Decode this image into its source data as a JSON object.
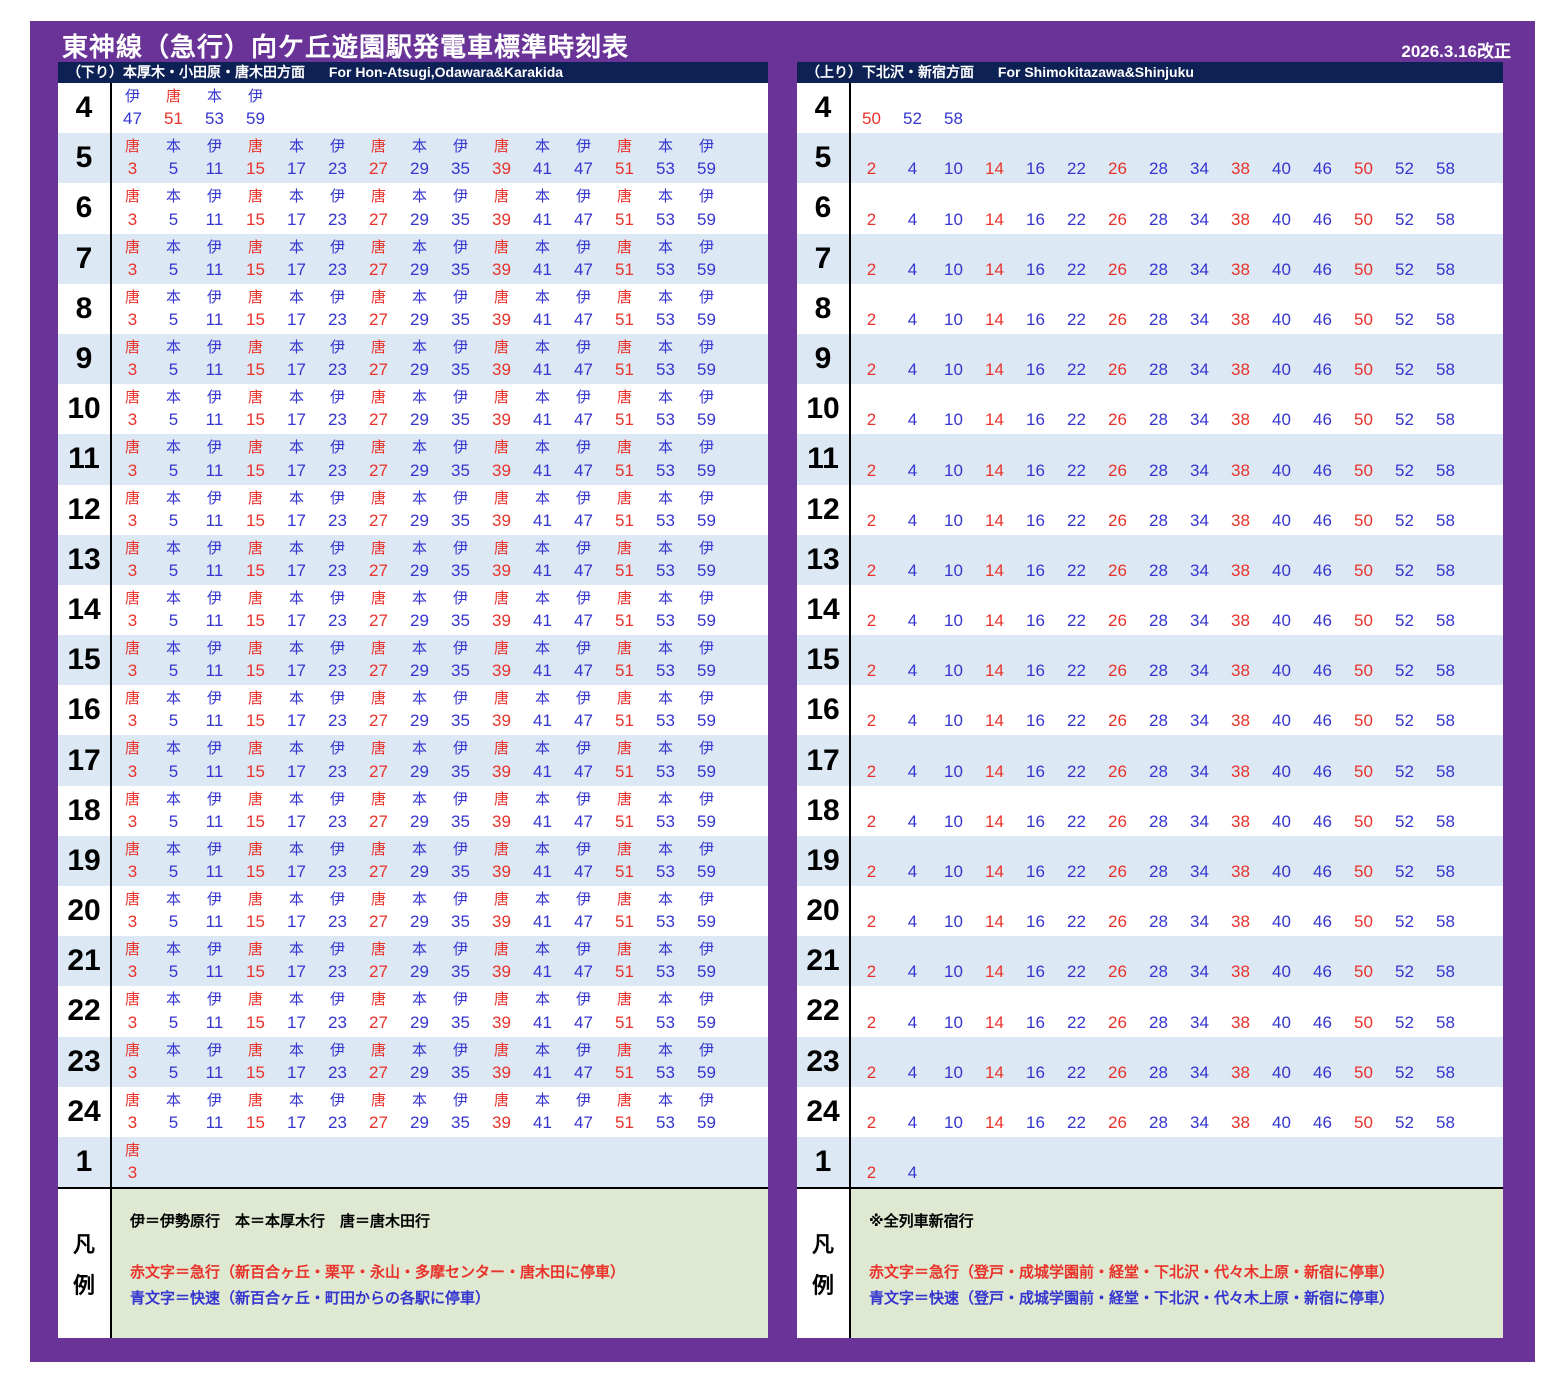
{
  "title": "東神線（急行）向ケ丘遊園駅発電車標準時刻表",
  "revision": "2026.3.16改正",
  "colors": {
    "background_purple": "#6A3397",
    "header_bar_navy": "#0D2155",
    "row_alt_blue": "#DCE9F5",
    "legend_green": "#DFE9D2",
    "express_red": "#E9322A",
    "rapid_blue": "#3535D0"
  },
  "legend_label_chars": [
    "凡",
    "例"
  ],
  "panels": [
    {
      "side": "down",
      "header_jp": "（下り）本厚木・小田原・唐木田方面",
      "header_en": "For Hon-Atsugi,Odawara&Karakida",
      "rows": [
        {
          "hours": [
            "4"
          ],
          "trains": [
            [
              "伊",
              "47",
              "blue"
            ],
            [
              "唐",
              "51",
              "red"
            ],
            [
              "本",
              "53",
              "blue"
            ],
            [
              "伊",
              "59",
              "blue"
            ]
          ]
        },
        {
          "hours": [
            "5",
            "6",
            "7",
            "8",
            "9",
            "10",
            "11",
            "12",
            "13",
            "14",
            "15",
            "16",
            "17",
            "18",
            "19",
            "20",
            "21",
            "22",
            "23",
            "24"
          ],
          "trains": [
            [
              "唐",
              "3",
              "red"
            ],
            [
              "本",
              "5",
              "blue"
            ],
            [
              "伊",
              "11",
              "blue"
            ],
            [
              "唐",
              "15",
              "red"
            ],
            [
              "本",
              "17",
              "blue"
            ],
            [
              "伊",
              "23",
              "blue"
            ],
            [
              "唐",
              "27",
              "red"
            ],
            [
              "本",
              "29",
              "blue"
            ],
            [
              "伊",
              "35",
              "blue"
            ],
            [
              "唐",
              "39",
              "red"
            ],
            [
              "本",
              "41",
              "blue"
            ],
            [
              "伊",
              "47",
              "blue"
            ],
            [
              "唐",
              "51",
              "red"
            ],
            [
              "本",
              "53",
              "blue"
            ],
            [
              "伊",
              "59",
              "blue"
            ]
          ]
        },
        {
          "hours": [
            "1"
          ],
          "trains": [
            [
              "唐",
              "3",
              "red"
            ]
          ]
        }
      ],
      "legend_lines": [
        {
          "text": "伊＝伊勢原行　本＝本厚木行　唐＝唐木田行",
          "color": "black"
        },
        {
          "text": "赤文字＝急行（新百合ヶ丘・栗平・永山・多摩センター・唐木田に停車）",
          "color": "red"
        },
        {
          "text": "青文字＝快速（新百合ヶ丘・町田からの各駅に停車）",
          "color": "blue"
        }
      ]
    },
    {
      "side": "up",
      "header_jp": "（上り）下北沢・新宿方面",
      "header_en": "For Shimokitazawa&Shinjuku",
      "rows": [
        {
          "hours": [
            "4"
          ],
          "trains": [
            [
              "",
              "50",
              "red"
            ],
            [
              "",
              "52",
              "blue"
            ],
            [
              "",
              "58",
              "blue"
            ]
          ]
        },
        {
          "hours": [
            "5",
            "6",
            "7",
            "8",
            "9",
            "10",
            "11",
            "12",
            "13",
            "14",
            "15",
            "16",
            "17",
            "18",
            "19",
            "20",
            "21",
            "22",
            "23",
            "24"
          ],
          "trains": [
            [
              "",
              "2",
              "red"
            ],
            [
              "",
              "4",
              "blue"
            ],
            [
              "",
              "10",
              "blue"
            ],
            [
              "",
              "14",
              "red"
            ],
            [
              "",
              "16",
              "blue"
            ],
            [
              "",
              "22",
              "blue"
            ],
            [
              "",
              "26",
              "red"
            ],
            [
              "",
              "28",
              "blue"
            ],
            [
              "",
              "34",
              "blue"
            ],
            [
              "",
              "38",
              "red"
            ],
            [
              "",
              "40",
              "blue"
            ],
            [
              "",
              "46",
              "blue"
            ],
            [
              "",
              "50",
              "red"
            ],
            [
              "",
              "52",
              "blue"
            ],
            [
              "",
              "58",
              "blue"
            ]
          ]
        },
        {
          "hours": [
            "1"
          ],
          "trains": [
            [
              "",
              "2",
              "red"
            ],
            [
              "",
              "4",
              "blue"
            ]
          ]
        }
      ],
      "legend_lines": [
        {
          "text": "※全列車新宿行",
          "color": "black"
        },
        {
          "text": "赤文字＝急行（登戸・成城学園前・経堂・下北沢・代々木上原・新宿に停車）",
          "color": "red"
        },
        {
          "text": "青文字＝快速（登戸・成城学園前・経堂・下北沢・代々木上原・新宿に停車）",
          "color": "blue"
        }
      ]
    }
  ]
}
